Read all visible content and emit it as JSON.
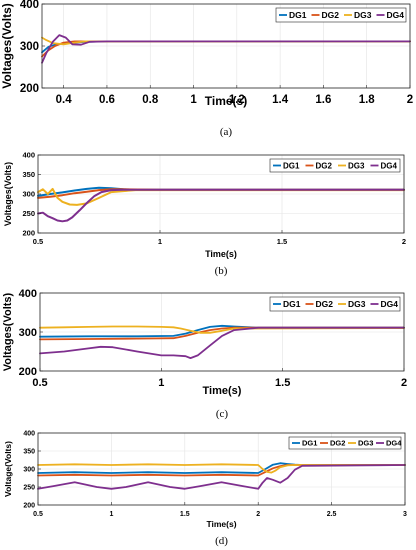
{
  "colors": {
    "DG1": "#0072BD",
    "DG2": "#D95319",
    "DG3": "#EDB120",
    "DG4": "#7E2F8E"
  },
  "chart_data": [
    {
      "type": "line",
      "caption": "(a)",
      "xlabel": "Time(s)",
      "ylabel": "Voltages(Volts)",
      "xlim": [
        0.3,
        2
      ],
      "ylim": [
        200,
        400
      ],
      "xticks": [
        0.4,
        0.6,
        0.8,
        1,
        1.2,
        1.4,
        1.6,
        1.8,
        2
      ],
      "xticklabels": [
        "0.4",
        "0.6",
        "0.8",
        "1",
        "1.2",
        "1.4",
        "1.6",
        "1.8",
        "2"
      ],
      "yticks": [
        200,
        300,
        400
      ],
      "yticklabels": [
        "200",
        "300",
        "400"
      ],
      "grid": true,
      "legend": "top-right",
      "series": [
        {
          "name": "DG1",
          "x": [
            0.3,
            0.33,
            0.36,
            0.4,
            0.45,
            0.5,
            0.6,
            2
          ],
          "y": [
            285,
            298,
            303,
            306,
            308,
            310,
            311,
            311
          ]
        },
        {
          "name": "DG2",
          "x": [
            0.3,
            0.33,
            0.36,
            0.4,
            0.45,
            0.5,
            0.6,
            2
          ],
          "y": [
            275,
            290,
            300,
            308,
            311,
            311,
            311,
            311
          ]
        },
        {
          "name": "DG3",
          "x": [
            0.3,
            0.32,
            0.35,
            0.4,
            0.45,
            0.5,
            0.6,
            2
          ],
          "y": [
            320,
            314,
            307,
            304,
            308,
            311,
            311,
            311
          ]
        },
        {
          "name": "DG4",
          "x": [
            0.3,
            0.32,
            0.35,
            0.38,
            0.41,
            0.44,
            0.48,
            0.52,
            0.6,
            2
          ],
          "y": [
            260,
            283,
            310,
            326,
            320,
            304,
            303,
            310,
            311,
            311
          ]
        }
      ]
    },
    {
      "type": "line",
      "caption": "(b)",
      "xlabel": "Time(s)",
      "ylabel": "Voltages(Volts)",
      "xlim": [
        0.5,
        2
      ],
      "ylim": [
        200,
        400
      ],
      "xticks": [
        0.5,
        1,
        1.5,
        2
      ],
      "xticklabels": [
        "0.5",
        "1",
        "1.5",
        "2"
      ],
      "yticks": [
        200,
        250,
        300,
        350,
        400
      ],
      "yticklabels": [
        "200",
        "250",
        "300",
        "350",
        "400"
      ],
      "grid": true,
      "legend": "top-right",
      "series": [
        {
          "name": "DG1",
          "x": [
            0.5,
            0.55,
            0.6,
            0.65,
            0.7,
            0.75,
            0.8,
            0.85,
            0.9,
            1,
            2
          ],
          "y": [
            295,
            300,
            304,
            309,
            313,
            316,
            315,
            312,
            311,
            311,
            311
          ]
        },
        {
          "name": "DG2",
          "x": [
            0.5,
            0.55,
            0.6,
            0.65,
            0.7,
            0.75,
            0.8,
            0.85,
            1,
            2
          ],
          "y": [
            290,
            293,
            297,
            302,
            306,
            310,
            312,
            312,
            311,
            311
          ]
        },
        {
          "name": "DG3",
          "x": [
            0.5,
            0.52,
            0.54,
            0.56,
            0.58,
            0.6,
            0.63,
            0.66,
            0.7,
            0.75,
            0.8,
            0.9,
            2
          ],
          "y": [
            305,
            312,
            300,
            313,
            290,
            280,
            273,
            272,
            276,
            290,
            305,
            310,
            310
          ]
        },
        {
          "name": "DG4",
          "x": [
            0.5,
            0.52,
            0.54,
            0.56,
            0.58,
            0.6,
            0.62,
            0.64,
            0.67,
            0.7,
            0.73,
            0.76,
            0.8,
            0.85,
            2
          ],
          "y": [
            250,
            252,
            243,
            238,
            232,
            230,
            232,
            240,
            258,
            277,
            294,
            305,
            310,
            311,
            311
          ]
        }
      ]
    },
    {
      "type": "line",
      "caption": "(c)",
      "xlabel": "Time(s)",
      "ylabel": "Voltages(Volts)",
      "xlim": [
        0.5,
        2
      ],
      "ylim": [
        200,
        400
      ],
      "xticks": [
        0.5,
        1,
        1.5,
        2
      ],
      "xticklabels": [
        "0.5",
        "1",
        "1.5",
        "2"
      ],
      "yticks": [
        200,
        300,
        400
      ],
      "yticklabels": [
        "200",
        "300",
        "400"
      ],
      "grid": true,
      "legend": "top-right",
      "series": [
        {
          "name": "DG1",
          "x": [
            0.5,
            0.7,
            0.9,
            1.05,
            1.1,
            1.15,
            1.2,
            1.25,
            1.3,
            1.4,
            2
          ],
          "y": [
            288,
            289,
            289,
            290,
            296,
            305,
            313,
            316,
            314,
            311,
            311
          ]
        },
        {
          "name": "DG2",
          "x": [
            0.5,
            0.7,
            0.9,
            1.05,
            1.1,
            1.15,
            1.2,
            1.25,
            1.3,
            1.35,
            2
          ],
          "y": [
            281,
            282,
            283,
            284,
            290,
            298,
            305,
            309,
            311,
            311,
            311
          ]
        },
        {
          "name": "DG3",
          "x": [
            0.5,
            0.6,
            0.7,
            0.8,
            0.9,
            1,
            1.05,
            1.08,
            1.12,
            1.16,
            1.2,
            1.25,
            1.3,
            2
          ],
          "y": [
            311,
            312,
            313,
            314,
            314,
            313,
            312,
            309,
            303,
            298,
            298,
            303,
            309,
            310
          ]
        },
        {
          "name": "DG4",
          "x": [
            0.5,
            0.6,
            0.7,
            0.75,
            0.8,
            0.9,
            1,
            1.05,
            1.1,
            1.12,
            1.15,
            1.2,
            1.25,
            1.3,
            1.4,
            2
          ],
          "y": [
            245,
            250,
            258,
            262,
            261,
            250,
            240,
            240,
            238,
            233,
            240,
            265,
            290,
            305,
            311,
            311
          ]
        }
      ]
    },
    {
      "type": "line",
      "caption": "(d)",
      "xlabel": "Time(s)",
      "ylabel": "Voltage(Volts)",
      "xlim": [
        0.5,
        3
      ],
      "ylim": [
        200,
        400
      ],
      "xticks": [
        0.5,
        1,
        1.5,
        2,
        2.5,
        3
      ],
      "xticklabels": [
        "0.5",
        "1",
        "1.5",
        "2",
        "2.5",
        "3"
      ],
      "yticks": [
        200,
        250,
        300,
        350,
        400
      ],
      "yticklabels": [
        "200",
        "250",
        "300",
        "350",
        "400"
      ],
      "grid": true,
      "legend": "top-right",
      "series": [
        {
          "name": "DG1",
          "x": [
            0.5,
            0.75,
            1.0,
            1.25,
            1.5,
            1.75,
            2.0,
            2.05,
            2.1,
            2.15,
            2.2,
            2.25,
            2.3,
            2.4,
            3
          ],
          "y": [
            289,
            291,
            289,
            291,
            289,
            291,
            289,
            300,
            312,
            316,
            314,
            312,
            311,
            311,
            311
          ]
        },
        {
          "name": "DG2",
          "x": [
            0.5,
            0.75,
            1.0,
            1.25,
            1.5,
            1.75,
            2.0,
            2.05,
            2.1,
            2.15,
            2.2,
            2.25,
            2.3,
            3
          ],
          "y": [
            282,
            284,
            282,
            284,
            282,
            284,
            282,
            292,
            302,
            308,
            311,
            311,
            311,
            311
          ]
        },
        {
          "name": "DG3",
          "x": [
            0.5,
            0.75,
            1.0,
            1.25,
            1.5,
            1.75,
            2.0,
            2.03,
            2.06,
            2.09,
            2.12,
            2.15,
            2.2,
            2.25,
            2.3,
            3
          ],
          "y": [
            311,
            313,
            311,
            313,
            311,
            313,
            311,
            300,
            292,
            290,
            296,
            305,
            310,
            311,
            311,
            311
          ]
        },
        {
          "name": "DG4",
          "x": [
            0.5,
            0.6,
            0.75,
            0.9,
            1.0,
            1.1,
            1.25,
            1.4,
            1.5,
            1.6,
            1.75,
            1.9,
            2.0,
            2.03,
            2.06,
            2.1,
            2.15,
            2.2,
            2.25,
            2.3,
            3
          ],
          "y": [
            245,
            252,
            263,
            250,
            245,
            250,
            263,
            250,
            245,
            252,
            263,
            252,
            245,
            262,
            275,
            270,
            262,
            275,
            298,
            309,
            311
          ]
        }
      ]
    }
  ]
}
